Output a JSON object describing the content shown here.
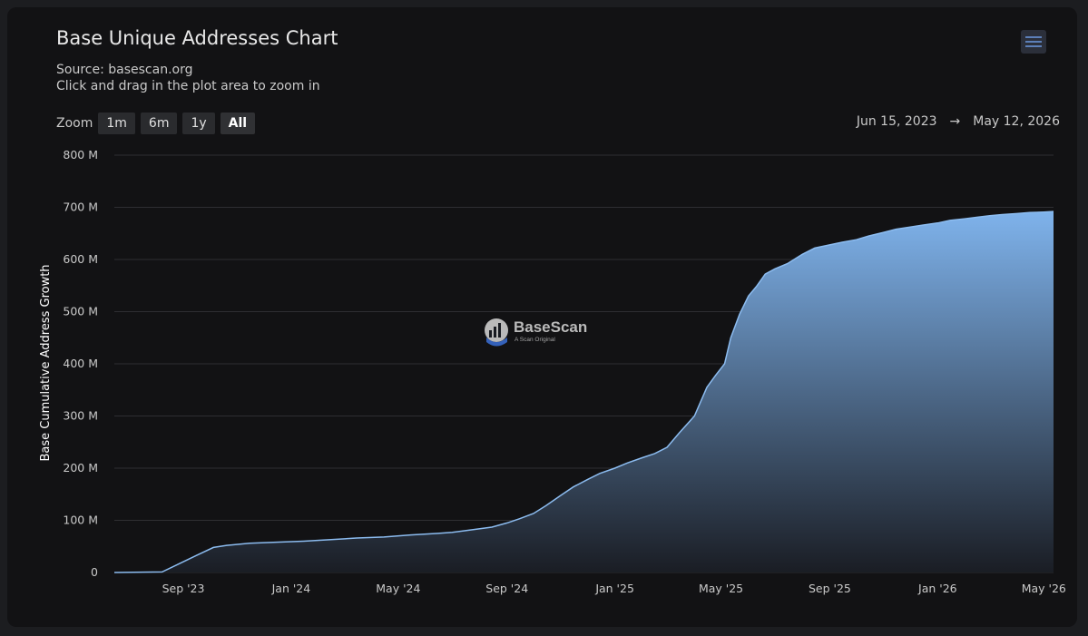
{
  "header": {
    "title": "Base Unique Addresses Chart",
    "source": "Source: basescan.org",
    "hint": "Click and drag in the plot area to zoom in"
  },
  "zoom": {
    "label": "Zoom",
    "buttons": [
      "1m",
      "6m",
      "1y",
      "All"
    ],
    "active": "All"
  },
  "range": {
    "from": "Jun 15, 2023",
    "arrow": "→",
    "to": "May 12, 2026"
  },
  "watermark": {
    "name": "BaseScan",
    "tagline": "A Scan Original"
  },
  "colors": {
    "line": "#8cbcf0",
    "fill_top": "#7fb3ec",
    "fill_bottom": "#1a1d24",
    "grid": "#2e2e32",
    "background": "#121214"
  },
  "chart_data": {
    "type": "area",
    "title": "Base Unique Addresses Chart",
    "ylabel": "Base Cumulative Address Growth",
    "xlabel": "",
    "ylim": [
      0,
      800
    ],
    "y_unit": "M",
    "yticks": [
      "0",
      "100 M",
      "200 M",
      "300 M",
      "400 M",
      "500 M",
      "600 M",
      "700 M",
      "800 M"
    ],
    "xticks": [
      "Sep '23",
      "Jan '24",
      "May '24",
      "Sep '24",
      "Jan '25",
      "May '25",
      "Sep '25",
      "Jan '26",
      "May '26"
    ],
    "x_range": [
      "2023-06-15",
      "2026-05-12"
    ],
    "grid": true,
    "legend": false,
    "series": [
      {
        "x": [
          "2023-06-15",
          "2023-08-08",
          "2023-08-25",
          "2023-09-15",
          "2023-10-05",
          "2023-10-20",
          "2023-11-15",
          "2023-12-15",
          "2024-01-15",
          "2024-02-15",
          "2024-03-15",
          "2024-04-15",
          "2024-05-15",
          "2024-06-15",
          "2024-07-01",
          "2024-07-15",
          "2024-08-15",
          "2024-09-01",
          "2024-09-15",
          "2024-10-01",
          "2024-10-15",
          "2024-11-01",
          "2024-11-15",
          "2024-12-01",
          "2024-12-15",
          "2025-01-01",
          "2025-01-15",
          "2025-02-01",
          "2025-02-15",
          "2025-03-01",
          "2025-03-15",
          "2025-04-01",
          "2025-04-15",
          "2025-04-25",
          "2025-05-05",
          "2025-05-12",
          "2025-05-22",
          "2025-06-01",
          "2025-06-10",
          "2025-06-20",
          "2025-07-01",
          "2025-07-15",
          "2025-08-01",
          "2025-08-15",
          "2025-09-01",
          "2025-09-15",
          "2025-10-01",
          "2025-10-15",
          "2025-11-01",
          "2025-11-15",
          "2025-12-01",
          "2025-12-15",
          "2026-01-01",
          "2026-01-15",
          "2026-02-01",
          "2026-02-15",
          "2026-03-01",
          "2026-03-15",
          "2026-04-01",
          "2026-04-15",
          "2026-05-01",
          "2026-05-12"
        ],
        "y": [
          0,
          1,
          15,
          32,
          48,
          52,
          56,
          58,
          60,
          63,
          66,
          68,
          72,
          75,
          77,
          80,
          87,
          95,
          103,
          113,
          128,
          148,
          164,
          178,
          190,
          200,
          210,
          220,
          228,
          240,
          268,
          300,
          355,
          378,
          400,
          450,
          495,
          530,
          548,
          572,
          582,
          592,
          610,
          622,
          628,
          633,
          638,
          645,
          652,
          658,
          662,
          666,
          670,
          675,
          678,
          681,
          684,
          686,
          688,
          690,
          691,
          692
        ]
      }
    ]
  }
}
